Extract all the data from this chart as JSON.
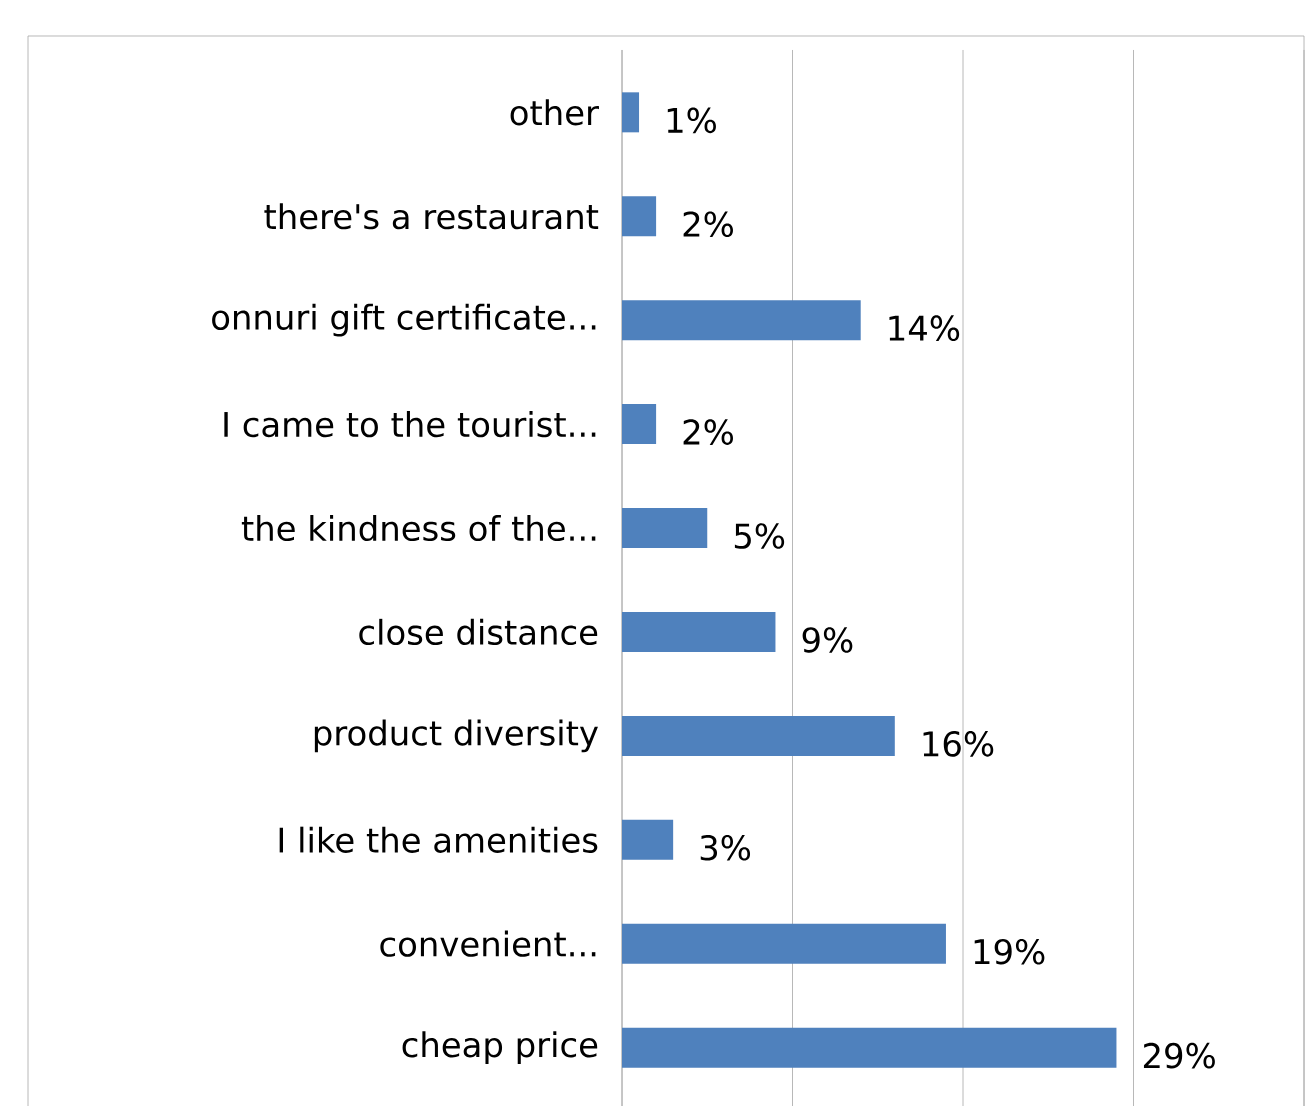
{
  "chart_data": {
    "type": "bar",
    "orientation": "horizontal",
    "categories": [
      "other",
      "there's a restaurant",
      "onnuri gift certificate...",
      "I came to the tourist...",
      "the kindness of the...",
      "close distance",
      "product diversity",
      "I like the amenities",
      "convenient...",
      "cheap price"
    ],
    "values": [
      1,
      2,
      14,
      2,
      5,
      9,
      16,
      3,
      19,
      29
    ],
    "value_labels": [
      "1%",
      "2%",
      "14%",
      "2%",
      "5%",
      "9%",
      "16%",
      "3%",
      "19%",
      "29%"
    ],
    "color": "#4f81bd",
    "xlim": [
      0,
      40
    ],
    "xticks": [
      {
        "value": 0,
        "label": null
      },
      {
        "value": 10,
        "label": null
      },
      {
        "value": 20,
        "label": null
      },
      {
        "value": 30,
        "label": null
      },
      {
        "value": 40,
        "label": null
      }
    ],
    "grid": "x",
    "tick_labels": "y"
  }
}
